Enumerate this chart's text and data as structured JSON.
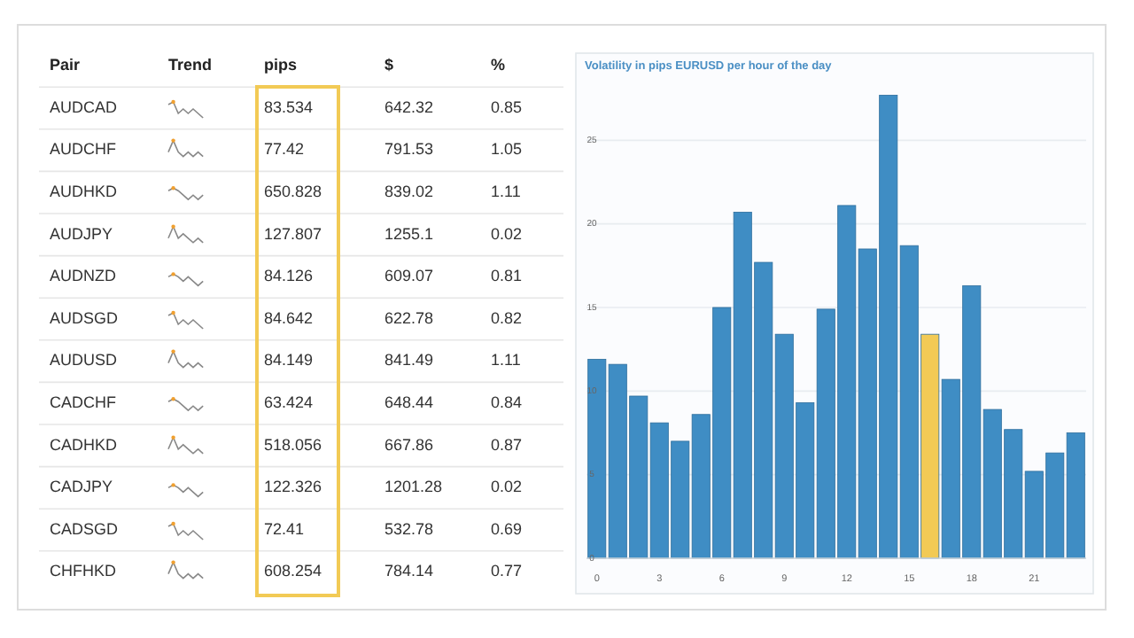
{
  "chart_data": [
    {
      "type": "other",
      "categories": [
        "AUDCAD",
        "AUDCHF",
        "AUDHKD",
        "AUDJPY",
        "AUDNZD",
        "AUDSGD",
        "AUDUSD",
        "CADCHF",
        "CADHKD",
        "CADJPY",
        "CADSGD",
        "CHFHKD"
      ],
      "annotations": [
        "Pair",
        "Trend"
      ],
      "data_labels": true,
      "series": [
        {
          "name": "pips",
          "values": [
            83.534,
            77.42,
            650.828,
            127.807,
            84.126,
            84.642,
            84.149,
            63.424,
            518.056,
            122.326,
            72.41,
            608.254
          ]
        },
        {
          "name": "$",
          "values": [
            642.32,
            791.53,
            839.02,
            1255.1,
            609.07,
            622.78,
            841.49,
            648.44,
            667.86,
            1201.28,
            532.78,
            784.14
          ]
        },
        {
          "name": "%",
          "values": [
            0.85,
            1.05,
            1.11,
            0.02,
            0.81,
            0.82,
            1.11,
            0.84,
            0.87,
            0.02,
            0.69,
            0.77
          ]
        }
      ]
    },
    {
      "type": "bar",
      "title": "Volatility in pips EURUSD per hour of the day",
      "x": [
        0,
        1,
        2,
        3,
        4,
        5,
        6,
        7,
        8,
        9,
        10,
        11,
        12,
        13,
        14,
        15,
        16,
        17,
        18,
        19,
        20,
        21,
        22,
        23
      ],
      "values": [
        11.9,
        11.6,
        9.7,
        8.1,
        7.0,
        8.6,
        15.0,
        20.7,
        17.7,
        13.4,
        9.3,
        14.9,
        21.1,
        18.5,
        27.7,
        18.7,
        13.4,
        10.7,
        16.3,
        8.9,
        7.7,
        5.2,
        6.3,
        7.5
      ],
      "colors": [
        "#3f8dc4",
        "#3f8dc4",
        "#3f8dc4",
        "#3f8dc4",
        "#3f8dc4",
        "#3f8dc4",
        "#3f8dc4",
        "#3f8dc4",
        "#3f8dc4",
        "#3f8dc4",
        "#3f8dc4",
        "#3f8dc4",
        "#3f8dc4",
        "#3f8dc4",
        "#3f8dc4",
        "#3f8dc4",
        "#f2ca55",
        "#3f8dc4",
        "#3f8dc4",
        "#3f8dc4",
        "#3f8dc4",
        "#3f8dc4",
        "#3f8dc4",
        "#3f8dc4"
      ],
      "xlim": [
        -0.5,
        23.5
      ],
      "xticks": [
        0,
        3,
        6,
        9,
        12,
        15,
        18,
        21
      ],
      "ylim": [
        0,
        30
      ],
      "yticks": [
        0,
        5,
        10,
        15,
        20,
        25
      ],
      "grid": "y"
    }
  ]
}
